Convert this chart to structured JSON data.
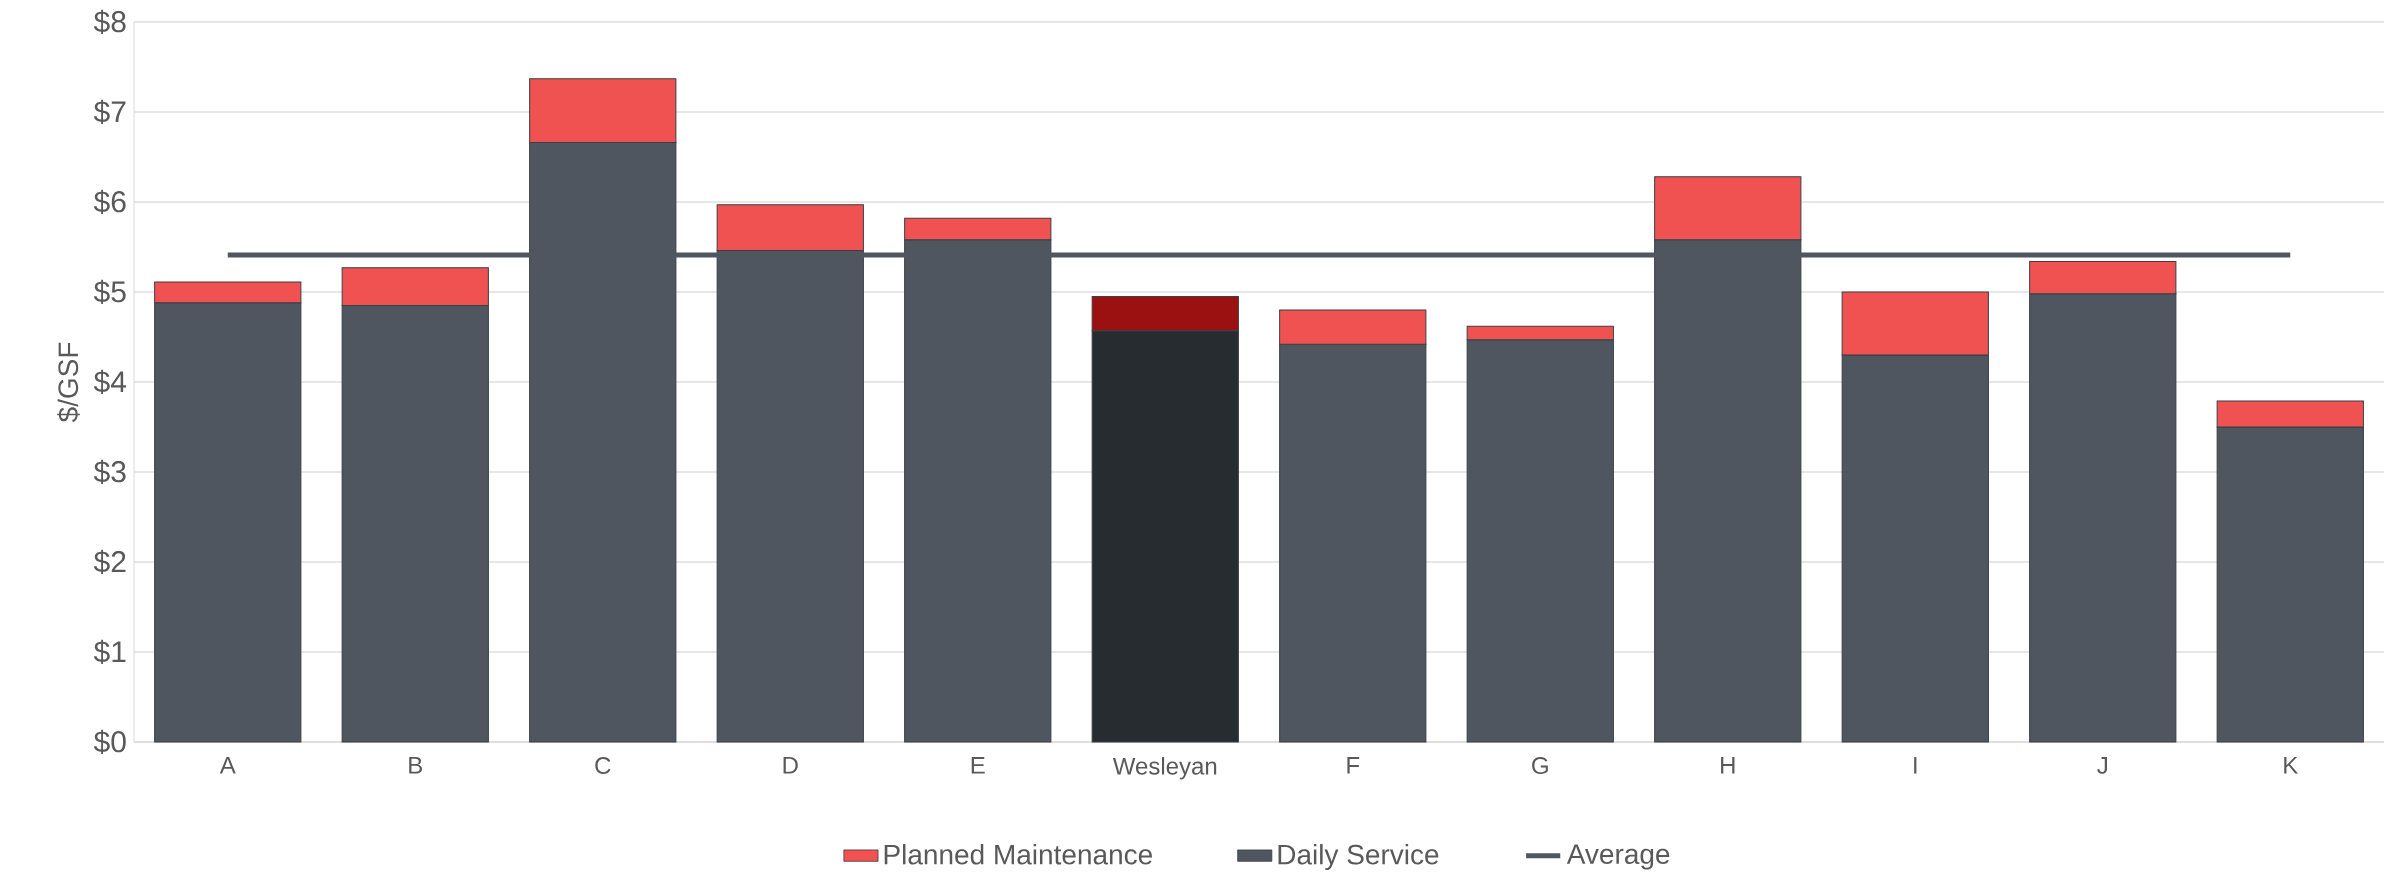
{
  "chart_data": {
    "type": "bar",
    "stacked": true,
    "ylabel": "$/GSF",
    "categories": [
      "A",
      "B",
      "C",
      "D",
      "E",
      "Wesleyan",
      "F",
      "G",
      "H",
      "I",
      "J",
      "K"
    ],
    "series": [
      {
        "name": "Daily Service",
        "color": "#4f5660",
        "colors": [
          "#4f5660",
          "#4f5660",
          "#4f5660",
          "#4f5660",
          "#4f5660",
          "#272c31",
          "#4f5660",
          "#4f5660",
          "#4f5660",
          "#4f5660",
          "#4f5660",
          "#4f5660"
        ],
        "values": [
          4.88,
          4.85,
          6.66,
          5.46,
          5.58,
          4.57,
          4.42,
          4.47,
          5.58,
          4.3,
          4.98,
          3.5
        ]
      },
      {
        "name": "Planned Maintenance",
        "color": "#f05252",
        "colors": [
          "#f05252",
          "#f05252",
          "#f05252",
          "#f05252",
          "#f05252",
          "#9b1010",
          "#f05252",
          "#f05252",
          "#f05252",
          "#f05252",
          "#f05252",
          "#f05252"
        ],
        "values": [
          0.23,
          0.42,
          0.71,
          0.51,
          0.24,
          0.38,
          0.38,
          0.15,
          0.7,
          0.7,
          0.36,
          0.29
        ]
      },
      {
        "name": "Average",
        "type": "line",
        "color": "#4f5660",
        "values": [
          5.41,
          5.41,
          5.41,
          5.41,
          5.41,
          5.41,
          5.41,
          5.41,
          5.41,
          5.41,
          5.41,
          5.41
        ]
      }
    ],
    "ylim": [
      0,
      8
    ],
    "yticks": [
      {
        "value": 0,
        "label": "$0"
      },
      {
        "value": 1,
        "label": "$1"
      },
      {
        "value": 2,
        "label": "$2"
      },
      {
        "value": 3,
        "label": "$3"
      },
      {
        "value": 4,
        "label": "$4"
      },
      {
        "value": 5,
        "label": "$5"
      },
      {
        "value": 6,
        "label": "$6"
      },
      {
        "value": 7,
        "label": "$7"
      },
      {
        "value": 8,
        "label": "$8"
      }
    ],
    "grid": "y",
    "legend": "bottom",
    "marker": "none"
  }
}
